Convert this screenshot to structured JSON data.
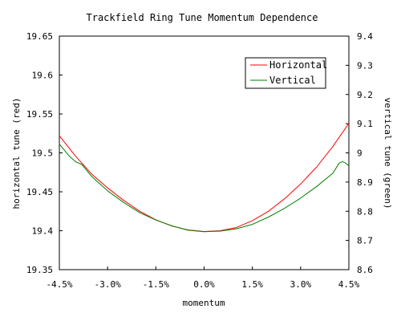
{
  "chart_data": {
    "type": "line",
    "title": "Trackfield Ring Tune Momentum Dependence",
    "xlabel": "momentum",
    "ylabel_left": "horizontal tune (red)",
    "ylabel_right": "vertical tune (green)",
    "xlim": [
      -4.5,
      4.5
    ],
    "x_ticks": [
      -4.5,
      -3.0,
      -1.5,
      0.0,
      1.5,
      3.0,
      4.5
    ],
    "x_tick_labels": [
      "-4.5%",
      "-3.0%",
      "-1.5%",
      "0.0%",
      "1.5%",
      "3.0%",
      "4.5%"
    ],
    "ylim_left": [
      19.35,
      19.65
    ],
    "y_ticks_left": [
      19.35,
      19.4,
      19.45,
      19.5,
      19.55,
      19.6,
      19.65
    ],
    "y_tick_labels_left": [
      "19.35",
      "19.4",
      "19.45",
      "19.5",
      "19.55",
      "19.6",
      "19.65"
    ],
    "ylim_right": [
      8.6,
      9.4
    ],
    "y_ticks_right": [
      8.6,
      8.7,
      8.8,
      8.9,
      9.0,
      9.1,
      9.2,
      9.3,
      9.4
    ],
    "y_tick_labels_right": [
      "8.6",
      "8.7",
      "8.8",
      "8.9",
      "9",
      "9.1",
      "9.2",
      "9.3",
      "9.4"
    ],
    "grid": false,
    "legend_position": "top-right",
    "series": [
      {
        "name": "Horizontal",
        "axis": "left",
        "color": "#ff0000",
        "x": [
          -4.5,
          -4.0,
          -3.5,
          -3.0,
          -2.5,
          -2.0,
          -1.5,
          -1.0,
          -0.5,
          0.0,
          0.5,
          1.0,
          1.5,
          2.0,
          2.5,
          3.0,
          3.5,
          4.0,
          4.5
        ],
        "values": [
          19.522,
          19.496,
          19.473,
          19.455,
          19.439,
          19.425,
          19.414,
          19.406,
          19.401,
          19.399,
          19.4,
          19.404,
          19.413,
          19.425,
          19.441,
          19.46,
          19.482,
          19.508,
          19.538
        ]
      },
      {
        "name": "Vertical",
        "axis": "right",
        "color": "#008000",
        "x": [
          -4.5,
          -4.2,
          -4.0,
          -3.8,
          -3.5,
          -3.0,
          -2.5,
          -2.0,
          -1.5,
          -1.0,
          -0.5,
          0.0,
          0.5,
          1.0,
          1.5,
          2.0,
          2.5,
          3.0,
          3.5,
          4.0,
          4.2,
          4.3,
          4.4,
          4.5
        ],
        "values": [
          9.03,
          8.99,
          8.97,
          8.96,
          8.92,
          8.87,
          8.83,
          8.795,
          8.77,
          8.75,
          8.735,
          8.73,
          8.732,
          8.74,
          8.755,
          8.78,
          8.81,
          8.845,
          8.885,
          8.93,
          8.965,
          8.97,
          8.965,
          8.955
        ]
      }
    ]
  }
}
